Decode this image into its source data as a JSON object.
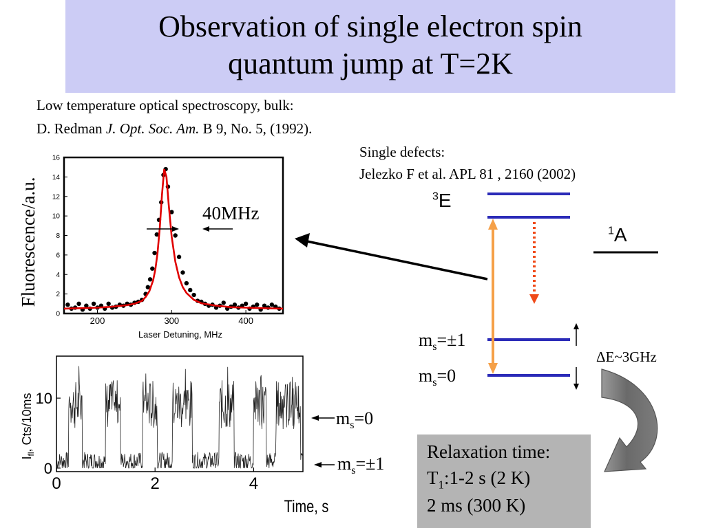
{
  "slide": {
    "title_line1": "Observation of single electron spin",
    "title_line2": "quantum jump at T=2K",
    "ref1_line1": "Low temperature optical spectroscopy, bulk:",
    "ref1_line2_prefix": "D. Redman ",
    "ref1_journal": "J. Opt. Soc. Am.",
    "ref1_line2_suffix": " B 9, No. 5, (1992).",
    "ref2_line1": "Single defects:",
    "ref2_line2": "Jelezko F et al. APL 81 , 2160 (2002)",
    "linewidth_label": "40MHz"
  },
  "levels": {
    "excited_sup": "3",
    "excited_name": "E",
    "singlet_sup": "1",
    "singlet_name": "A",
    "ms_symbol": "m",
    "ms_sub": "s",
    "ms_pm1_value": "=±1",
    "ms_0_value": "=0",
    "splitting": "ΔE~3GHz",
    "colors": {
      "level": "#2b2bb8",
      "optical": "#f5a048",
      "decay": "#f04a18"
    }
  },
  "trace_labels": {
    "ms0_value": "=0",
    "mspm1_value": "=±1"
  },
  "relaxation": {
    "line1": "Relaxation time:",
    "line2_t": "T",
    "line2_sub": "1",
    "line2_rest": ":1-2 s (2 K)",
    "line3": "2 ms (300 K)"
  },
  "chart_data": [
    {
      "type": "scatter",
      "title": "",
      "xlabel": "Laser Detuning, MHz",
      "ylabel": "Fluorescence/a.u.",
      "xlim": [
        155,
        450
      ],
      "ylim": [
        0,
        16
      ],
      "x_ticks": [
        "200",
        "300",
        "400"
      ],
      "y_ticks": [
        "0",
        "2",
        "4",
        "6",
        "8",
        "10",
        "12",
        "14",
        "16"
      ],
      "series": [
        {
          "kind": "points",
          "x": [
            160,
            165,
            170,
            175,
            180,
            185,
            190,
            195,
            200,
            205,
            210,
            215,
            220,
            225,
            230,
            235,
            240,
            245,
            250,
            255,
            260,
            265,
            268,
            271,
            274,
            277,
            280,
            283,
            286,
            289,
            292,
            295,
            300,
            305,
            310,
            315,
            320,
            325,
            330,
            335,
            340,
            345,
            350,
            355,
            360,
            365,
            370,
            375,
            380,
            385,
            390,
            395,
            400,
            405,
            410,
            415,
            420,
            425,
            430,
            435,
            440,
            445
          ],
          "y": [
            0.9,
            0.5,
            0.6,
            1.0,
            0.4,
            0.8,
            0.5,
            1.0,
            0.6,
            0.8,
            0.5,
            1.0,
            0.6,
            0.7,
            0.9,
            0.8,
            1.0,
            0.9,
            1.1,
            1.2,
            1.4,
            2.0,
            2.7,
            3.5,
            4.6,
            6.2,
            8.1,
            9.6,
            11.4,
            14.2,
            14.8,
            13.0,
            10.4,
            8.0,
            5.8,
            4.2,
            3.1,
            2.4,
            1.9,
            1.3,
            1.2,
            1.0,
            0.8,
            0.9,
            0.6,
            0.8,
            1.1,
            0.5,
            0.7,
            0.9,
            0.6,
            0.8,
            1.0,
            0.5,
            0.7,
            0.9,
            0.4,
            0.8,
            0.6,
            0.9,
            0.7,
            0.5
          ]
        },
        {
          "kind": "fit",
          "x": [
            155,
            180,
            200,
            220,
            240,
            250,
            260,
            265,
            270,
            275,
            278,
            281,
            284,
            287,
            290,
            293,
            296,
            300,
            305,
            310,
            315,
            320,
            330,
            340,
            360,
            380,
            400,
            420,
            450
          ],
          "y": [
            0.5,
            0.55,
            0.6,
            0.7,
            0.85,
            1.0,
            1.3,
            1.7,
            2.3,
            3.4,
            4.5,
            6.2,
            8.8,
            12.2,
            14.8,
            14.0,
            11.2,
            7.9,
            5.3,
            3.7,
            2.7,
            2.1,
            1.4,
            1.05,
            0.8,
            0.65,
            0.6,
            0.55,
            0.5
          ],
          "color": "#e00000"
        }
      ]
    },
    {
      "type": "line",
      "title": "",
      "xlabel": "Time, s",
      "ylabel": "Ifl, Cts/10ms",
      "ylabel_main": "I",
      "ylabel_sub": "fl",
      "ylabel_rest": ", Cts/10ms",
      "xlim": [
        0,
        5
      ],
      "ylim": [
        -0.5,
        16
      ],
      "x_ticks": [
        "0",
        "2",
        "4"
      ],
      "y_ticks": [
        "0",
        "10"
      ],
      "series": [
        {
          "name": "",
          "levels": {
            "low": 1,
            "high": 9
          },
          "high_intervals": [
            [
              0.25,
              0.52
            ],
            [
              1.0,
              1.3
            ],
            [
              1.75,
              2.05
            ],
            [
              2.35,
              2.75
            ],
            [
              3.3,
              3.6
            ],
            [
              4.0,
              4.25
            ],
            [
              4.45,
              4.95
            ]
          ]
        }
      ]
    }
  ]
}
